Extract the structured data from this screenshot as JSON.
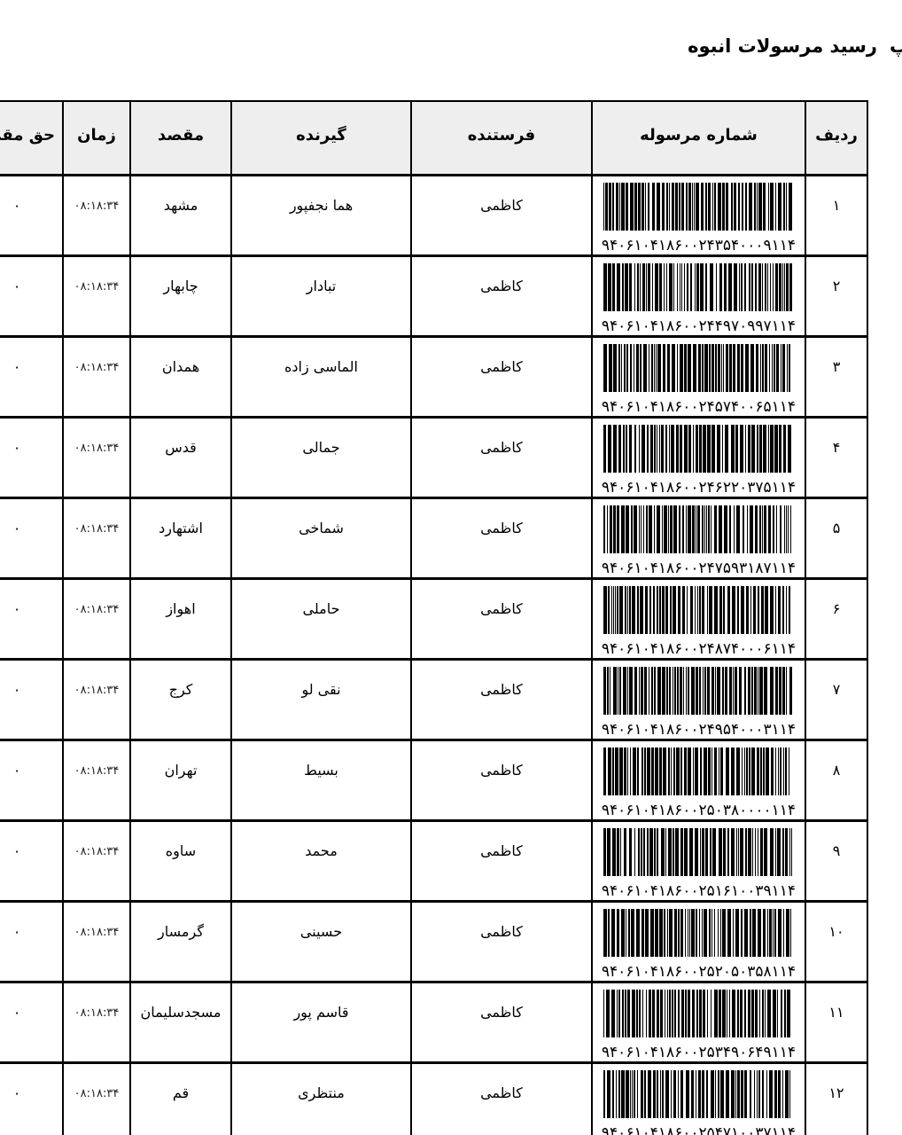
{
  "page": {
    "title": "رسید مرسولات انبوه",
    "title_cut_fragment": "پ"
  },
  "table": {
    "headers": {
      "row": "ردیف",
      "tracking": "شماره مرسوله",
      "sender": "فرستنده",
      "receiver": "گیرنده",
      "destination": "مقصد",
      "time": "زمان",
      "fee": "حق مقر"
    },
    "rows": [
      {
        "row": "۱",
        "tracking": "۹۴۰۶۱۰۴۱۸۶۰۰۲۴۳۵۴۰۰۰۹۱۱۴",
        "sender": "کاظمی",
        "receiver": "هما نجفپور",
        "destination": "مشهد",
        "time": "۰۸:۱۸:۳۴",
        "fee": "۰"
      },
      {
        "row": "۲",
        "tracking": "۹۴۰۶۱۰۴۱۸۶۰۰۲۴۴۹۷۰۹۹۷۱۱۴",
        "sender": "کاظمی",
        "receiver": "تبادار",
        "destination": "چابهار",
        "time": "۰۸:۱۸:۳۴",
        "fee": "۰"
      },
      {
        "row": "۳",
        "tracking": "۹۴۰۶۱۰۴۱۸۶۰۰۲۴۵۷۴۰۰۶۵۱۱۴",
        "sender": "کاظمی",
        "receiver": "الماسی زاده",
        "destination": "همدان",
        "time": "۰۸:۱۸:۳۴",
        "fee": "۰"
      },
      {
        "row": "۴",
        "tracking": "۹۴۰۶۱۰۴۱۸۶۰۰۲۴۶۲۲۰۳۷۵۱۱۴",
        "sender": "کاظمی",
        "receiver": "جمالی",
        "destination": "قدس",
        "time": "۰۸:۱۸:۳۴",
        "fee": "۰"
      },
      {
        "row": "۵",
        "tracking": "۹۴۰۶۱۰۴۱۸۶۰۰۲۴۷۵۹۳۱۸۷۱۱۴",
        "sender": "کاظمی",
        "receiver": "شماخی",
        "destination": "اشتهارد",
        "time": "۰۸:۱۸:۳۴",
        "fee": "۰"
      },
      {
        "row": "۶",
        "tracking": "۹۴۰۶۱۰۴۱۸۶۰۰۲۴۸۷۴۰۰۰۶۱۱۴",
        "sender": "کاظمی",
        "receiver": "حاملی",
        "destination": "اهواز",
        "time": "۰۸:۱۸:۳۴",
        "fee": "۰"
      },
      {
        "row": "۷",
        "tracking": "۹۴۰۶۱۰۴۱۸۶۰۰۲۴۹۵۴۰۰۰۳۱۱۴",
        "sender": "کاظمی",
        "receiver": "نقی لو",
        "destination": "کرج",
        "time": "۰۸:۱۸:۳۴",
        "fee": "۰"
      },
      {
        "row": "۸",
        "tracking": "۹۴۰۶۱۰۴۱۸۶۰۰۲۵۰۳۸۰۰۰۰۱۱۴",
        "sender": "کاظمی",
        "receiver": "بسیط",
        "destination": "تهران",
        "time": "۰۸:۱۸:۳۴",
        "fee": "۰"
      },
      {
        "row": "۹",
        "tracking": "۹۴۰۶۱۰۴۱۸۶۰۰۲۵۱۶۱۰۰۳۹۱۱۴",
        "sender": "کاظمی",
        "receiver": "محمد",
        "destination": "ساوه",
        "time": "۰۸:۱۸:۳۴",
        "fee": "۰"
      },
      {
        "row": "۱۰",
        "tracking": "۹۴۰۶۱۰۴۱۸۶۰۰۲۵۲۰۵۰۳۵۸۱۱۴",
        "sender": "کاظمی",
        "receiver": "حسینی",
        "destination": "گرمسار",
        "time": "۰۸:۱۸:۳۴",
        "fee": "۰"
      },
      {
        "row": "۱۱",
        "tracking": "۹۴۰۶۱۰۴۱۸۶۰۰۲۵۳۴۹۰۶۴۹۱۱۴",
        "sender": "کاظمی",
        "receiver": "قاسم پور",
        "destination": "مسجدسلیمان",
        "time": "۰۸:۱۸:۳۴",
        "fee": "۰"
      },
      {
        "row": "۱۲",
        "tracking": "۹۴۰۶۱۰۴۱۸۶۰۰۲۵۴۷۱۰۰۳۷۱۱۴",
        "sender": "کاظمی",
        "receiver": "منتظری",
        "destination": "قم",
        "time": "۰۸:۱۸:۳۴",
        "fee": "۰"
      }
    ]
  }
}
